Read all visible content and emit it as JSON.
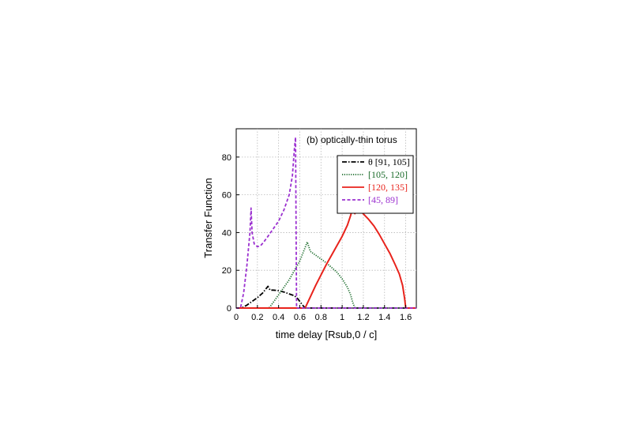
{
  "chart_data": {
    "type": "line",
    "annotation": "(b) optically-thin torus",
    "xlabel": "time delay [Rsub,0 / c]",
    "ylabel": "Transfer Function",
    "xlim": [
      0,
      1.7
    ],
    "ylim": [
      0,
      95
    ],
    "xticks": [
      0,
      0.2,
      0.4,
      0.6,
      0.8,
      1,
      1.2,
      1.4,
      1.6
    ],
    "xtick_labels": [
      "0",
      "0.2",
      "0.4",
      "0.6",
      "0.8",
      "1",
      "1.2",
      "1.4",
      "1.6"
    ],
    "yticks": [
      0,
      20,
      40,
      60,
      80
    ],
    "ytick_labels": [
      "0",
      "20",
      "40",
      "60",
      "80"
    ],
    "grid": true,
    "legend_position": "top-right",
    "series": [
      {
        "name": "θ [91, 105]",
        "color": "#000000",
        "style": "dashdot",
        "points": [
          [
            0,
            0
          ],
          [
            0.05,
            0
          ],
          [
            0.1,
            1.5
          ],
          [
            0.15,
            3.5
          ],
          [
            0.2,
            5.5
          ],
          [
            0.25,
            8
          ],
          [
            0.3,
            11.5
          ],
          [
            0.32,
            9.5
          ],
          [
            0.35,
            9.5
          ],
          [
            0.4,
            9.2
          ],
          [
            0.45,
            8.5
          ],
          [
            0.5,
            7.5
          ],
          [
            0.55,
            6.5
          ],
          [
            0.58,
            5
          ],
          [
            0.62,
            2
          ],
          [
            0.65,
            0
          ],
          [
            1.7,
            0
          ]
        ]
      },
      {
        "name": "[105, 120]",
        "color": "#1a6b2a",
        "style": "dotted",
        "points": [
          [
            0,
            0
          ],
          [
            0.31,
            0
          ],
          [
            0.35,
            3
          ],
          [
            0.4,
            7
          ],
          [
            0.45,
            11
          ],
          [
            0.5,
            15
          ],
          [
            0.55,
            20
          ],
          [
            0.6,
            25
          ],
          [
            0.65,
            32
          ],
          [
            0.67,
            35
          ],
          [
            0.7,
            30
          ],
          [
            0.75,
            28
          ],
          [
            0.8,
            26
          ],
          [
            0.85,
            24
          ],
          [
            0.9,
            21.5
          ],
          [
            0.95,
            19
          ],
          [
            1.0,
            15.5
          ],
          [
            1.05,
            11
          ],
          [
            1.08,
            7
          ],
          [
            1.1,
            3
          ],
          [
            1.12,
            0
          ],
          [
            1.7,
            0
          ]
        ]
      },
      {
        "name": "[120, 135]",
        "color": "#e8231c",
        "style": "solid",
        "points": [
          [
            0,
            0
          ],
          [
            0.65,
            0
          ],
          [
            0.7,
            6
          ],
          [
            0.75,
            12
          ],
          [
            0.8,
            17.5
          ],
          [
            0.85,
            23
          ],
          [
            0.9,
            28
          ],
          [
            0.95,
            33
          ],
          [
            1.0,
            38
          ],
          [
            1.05,
            44
          ],
          [
            1.08,
            49
          ],
          [
            1.1,
            53
          ],
          [
            1.12,
            50
          ],
          [
            1.14,
            53
          ],
          [
            1.18,
            51
          ],
          [
            1.25,
            47
          ],
          [
            1.3,
            43.5
          ],
          [
            1.35,
            39
          ],
          [
            1.4,
            34
          ],
          [
            1.45,
            29
          ],
          [
            1.5,
            23
          ],
          [
            1.54,
            18
          ],
          [
            1.57,
            12
          ],
          [
            1.59,
            5
          ],
          [
            1.6,
            0
          ],
          [
            1.7,
            0
          ]
        ]
      },
      {
        "name": "[45, 89]",
        "color": "#9b30d0",
        "style": "dashed",
        "points": [
          [
            0,
            0
          ],
          [
            0.04,
            0
          ],
          [
            0.07,
            8
          ],
          [
            0.1,
            22
          ],
          [
            0.13,
            40
          ],
          [
            0.14,
            53
          ],
          [
            0.15,
            40
          ],
          [
            0.17,
            34
          ],
          [
            0.2,
            32.5
          ],
          [
            0.23,
            33
          ],
          [
            0.26,
            35
          ],
          [
            0.3,
            38
          ],
          [
            0.35,
            42
          ],
          [
            0.4,
            46
          ],
          [
            0.45,
            52
          ],
          [
            0.5,
            60
          ],
          [
            0.53,
            70
          ],
          [
            0.55,
            85
          ],
          [
            0.56,
            90.5
          ],
          [
            0.57,
            0
          ],
          [
            1.7,
            0
          ]
        ]
      }
    ]
  }
}
